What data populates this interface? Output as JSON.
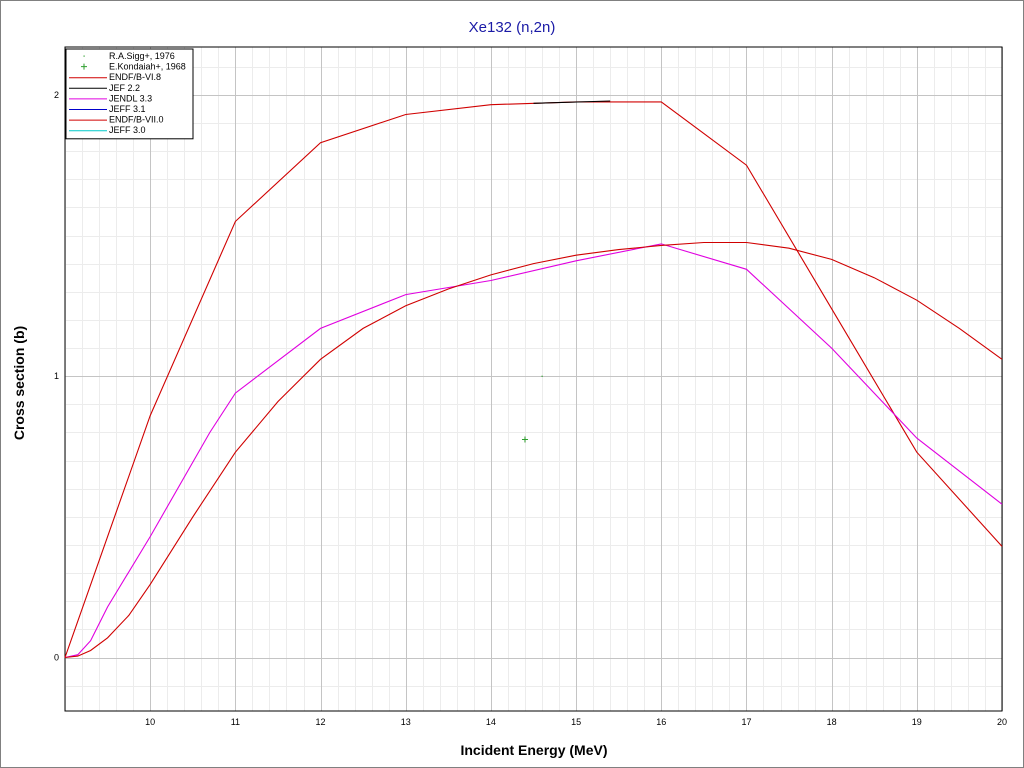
{
  "chart_data": {
    "type": "line",
    "title": "Xe132 (n,2n)",
    "xlabel": "Incident Energy (MeV)",
    "ylabel": "Cross section (b)",
    "xlim": [
      9.0,
      20.0
    ],
    "ylim": [
      -0.19,
      2.17
    ],
    "x_ticks": [
      10,
      11,
      12,
      13,
      14,
      15,
      16,
      17,
      18,
      19,
      20
    ],
    "y_ticks": [
      0,
      1,
      2
    ],
    "grid": true,
    "legend_position": "top-left",
    "series": [
      {
        "name": "R.A.Sigg+, 1976",
        "kind": "marker",
        "marker": "dot",
        "color": "#2e9e2e",
        "points": [
          [
            14.6,
            1.0
          ]
        ]
      },
      {
        "name": "E.Kondaiah+, 1968",
        "kind": "marker",
        "marker": "plus",
        "color": "#2e9e2e",
        "points": [
          [
            14.4,
            0.775
          ]
        ]
      },
      {
        "name": "ENDF/B-VI.8",
        "kind": "line",
        "color": "#d00000",
        "points": [
          [
            9.0,
            0.0
          ],
          [
            10.0,
            0.86
          ],
          [
            11.0,
            1.55
          ],
          [
            12.0,
            1.83
          ],
          [
            13.0,
            1.93
          ],
          [
            14.0,
            1.965
          ],
          [
            15.0,
            1.975
          ],
          [
            16.0,
            1.975
          ],
          [
            17.0,
            1.75
          ],
          [
            18.0,
            1.24
          ],
          [
            19.0,
            0.73
          ],
          [
            20.0,
            0.395
          ]
        ]
      },
      {
        "name": "JEF 2.2",
        "kind": "line",
        "color": "#000000",
        "points": [
          [
            14.5,
            1.97
          ],
          [
            15.4,
            1.978
          ]
        ]
      },
      {
        "name": "JENDL 3.3",
        "kind": "line",
        "color": "#e000e0",
        "points": [
          [
            9.0,
            0.0
          ],
          [
            9.15,
            0.01
          ],
          [
            9.3,
            0.06
          ],
          [
            9.5,
            0.18
          ],
          [
            10.0,
            0.43
          ],
          [
            10.7,
            0.8
          ],
          [
            11.0,
            0.94
          ],
          [
            12.0,
            1.17
          ],
          [
            13.0,
            1.29
          ],
          [
            14.0,
            1.34
          ],
          [
            15.0,
            1.41
          ],
          [
            16.0,
            1.47
          ],
          [
            17.0,
            1.38
          ],
          [
            18.0,
            1.1
          ],
          [
            19.0,
            0.78
          ],
          [
            20.0,
            0.545
          ]
        ]
      },
      {
        "name": "JEFF 3.1",
        "kind": "line",
        "color": "#0000cc",
        "points": []
      },
      {
        "name": "ENDF/B-VII.0",
        "kind": "line",
        "color": "#d00000",
        "points": [
          [
            9.0,
            0.0
          ],
          [
            9.15,
            0.005
          ],
          [
            9.3,
            0.025
          ],
          [
            9.5,
            0.07
          ],
          [
            9.75,
            0.15
          ],
          [
            10.0,
            0.26
          ],
          [
            10.5,
            0.5
          ],
          [
            11.0,
            0.73
          ],
          [
            11.5,
            0.91
          ],
          [
            12.0,
            1.06
          ],
          [
            12.5,
            1.17
          ],
          [
            13.0,
            1.25
          ],
          [
            13.5,
            1.31
          ],
          [
            14.0,
            1.36
          ],
          [
            14.5,
            1.4
          ],
          [
            15.0,
            1.43
          ],
          [
            15.5,
            1.45
          ],
          [
            16.0,
            1.465
          ],
          [
            16.5,
            1.475
          ],
          [
            17.0,
            1.475
          ],
          [
            17.5,
            1.455
          ],
          [
            18.0,
            1.415
          ],
          [
            18.5,
            1.35
          ],
          [
            19.0,
            1.27
          ],
          [
            19.5,
            1.17
          ],
          [
            20.0,
            1.06
          ]
        ]
      },
      {
        "name": "JEFF 3.0",
        "kind": "line",
        "color": "#00c8c8",
        "points": []
      }
    ]
  }
}
